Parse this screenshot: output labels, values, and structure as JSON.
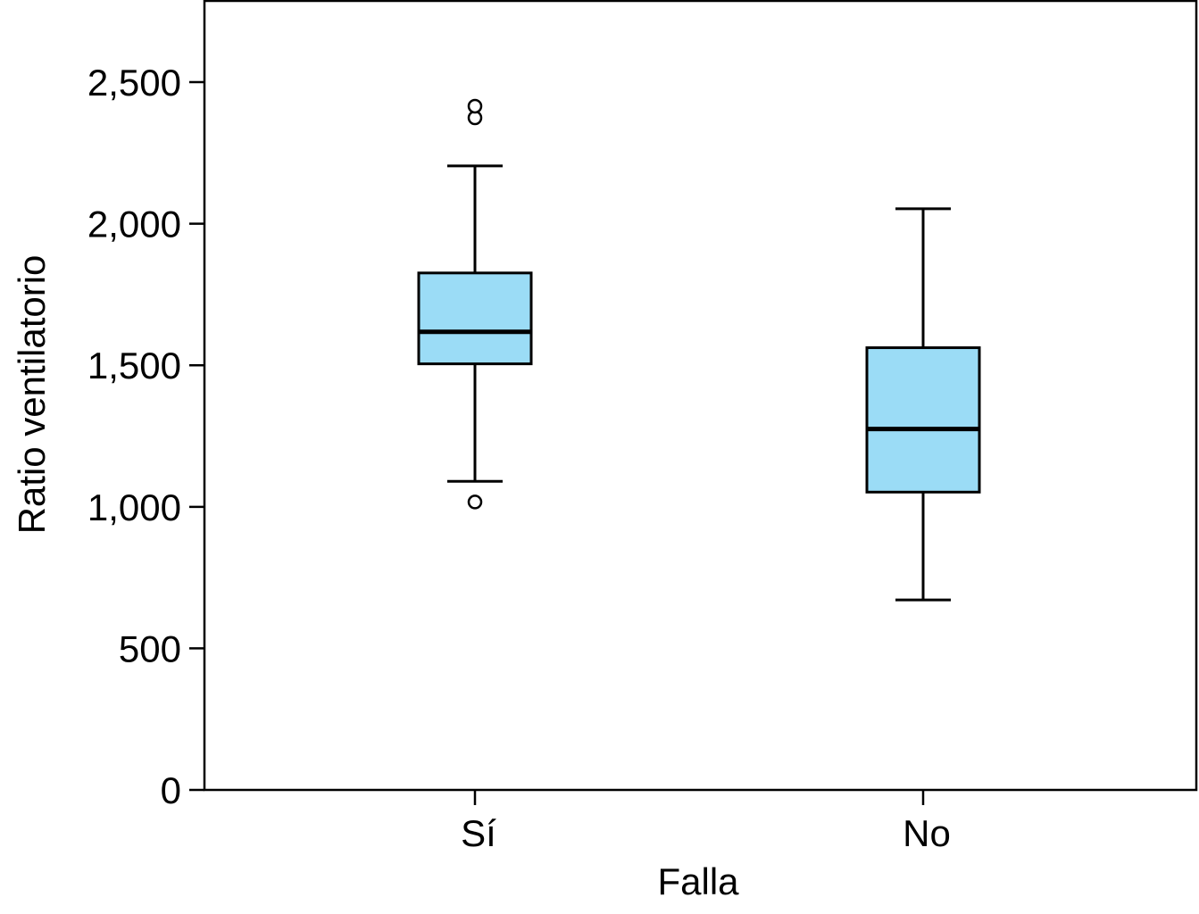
{
  "chart_data": {
    "type": "box",
    "title": "",
    "xlabel": "Falla",
    "ylabel": "Ratio ventilatorio",
    "ylim": [
      0,
      2787
    ],
    "yticks": [
      0,
      500,
      1000,
      1500,
      2000,
      2500
    ],
    "ytick_labels": [
      "0",
      "500",
      "1,000",
      "1,500",
      "2,000",
      "2,500"
    ],
    "grid": false,
    "box_color": "#9BDCF6",
    "categories": [
      "Sí",
      "No"
    ],
    "boxes": [
      {
        "category": "Sí",
        "whisker_low": 1090,
        "q1": 1505,
        "median": 1618,
        "q3": 1826,
        "whisker_high": 2204,
        "outliers": [
          1017,
          2374,
          2415
        ]
      },
      {
        "category": "No",
        "whisker_low": 671,
        "q1": 1052,
        "median": 1275,
        "q3": 1562,
        "whisker_high": 2053,
        "outliers": []
      }
    ]
  }
}
